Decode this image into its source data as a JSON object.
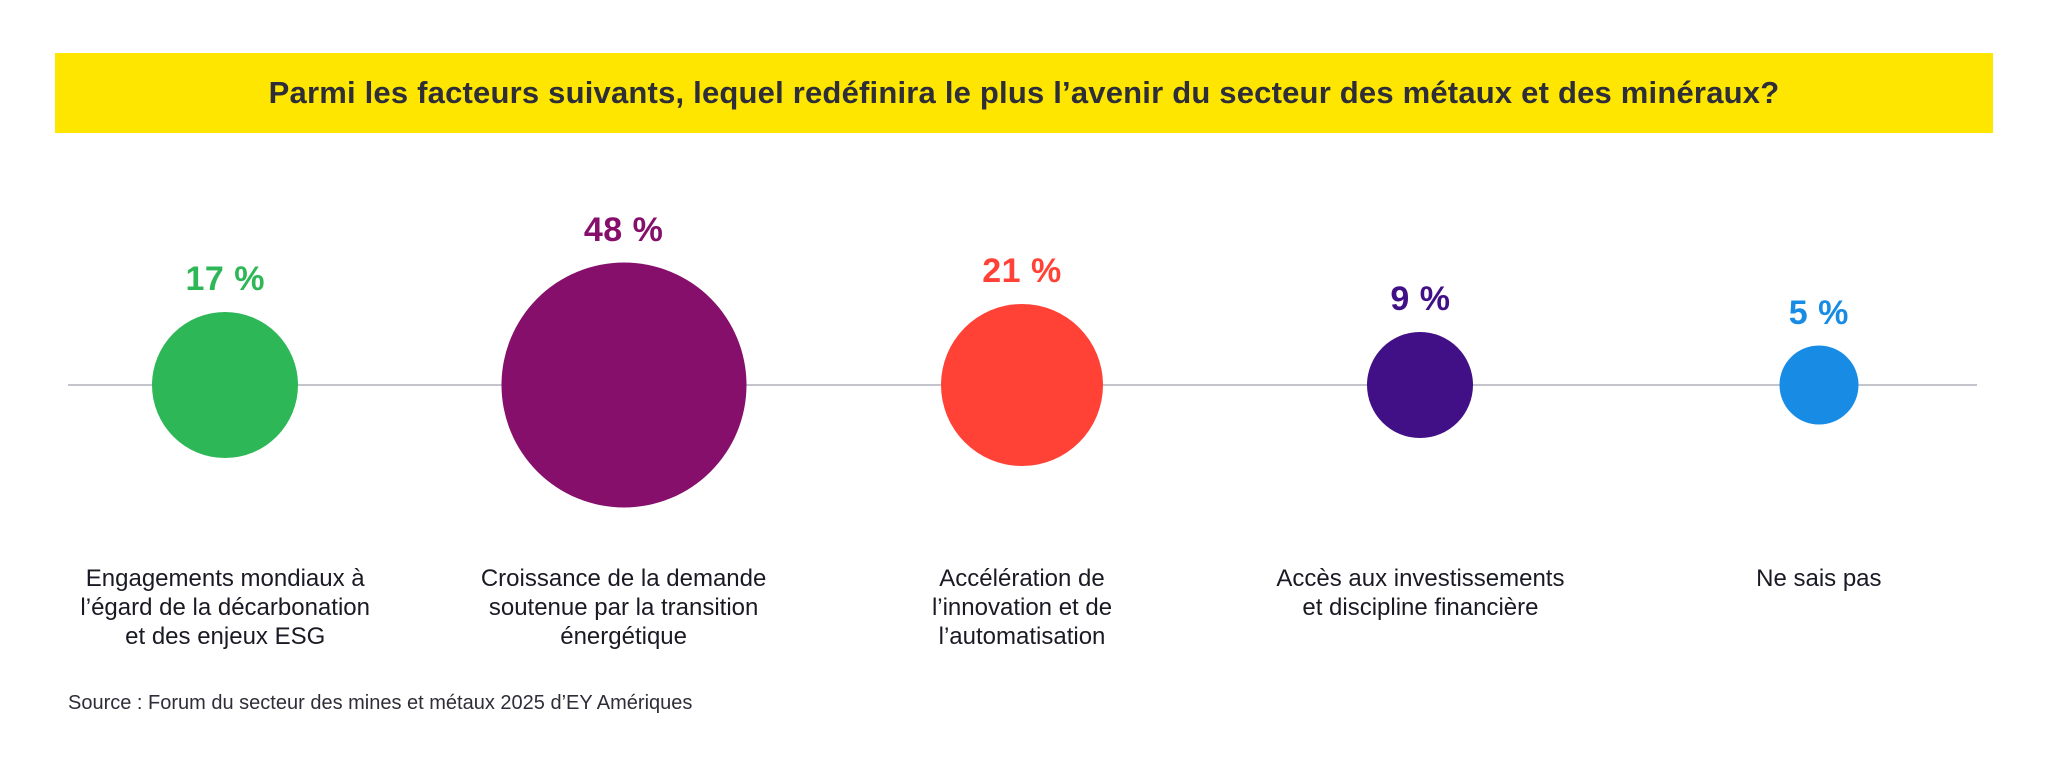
{
  "banner": {
    "title": "Parmi les facteurs suivants, lequel redéfinira le plus l’avenir du secteur des métaux et des minéraux?",
    "background": "#FFE600",
    "text_color": "#2E2E38"
  },
  "source": {
    "text": "Source : Forum du secteur des mines et métaux 2025 d’EY Amériques"
  },
  "chart_data": {
    "type": "bubble",
    "title": "Parmi les facteurs suivants, lequel redéfinira le plus l’avenir du secteur des métaux et des minéraux?",
    "unit": "%",
    "layout": "horizontal row of area-proportional circles centered on a gray baseline, value label above each circle, category label below",
    "baseline_color": "#C4C4CD",
    "items": [
      {
        "label": "Engagements mondiaux à l’égard de la décarbonation et des enjeux ESG",
        "label_lines": [
          "Engagements mondiaux à",
          "l’égard de la décarbonation",
          "et des enjeux ESG"
        ],
        "value": 17,
        "value_label": "17 %",
        "color": "#2DB757"
      },
      {
        "label": "Croissance de la demande soutenue par la transition énergétique",
        "label_lines": [
          "Croissance de la demande",
          "soutenue par la transition",
          "énergétique"
        ],
        "value": 48,
        "value_label": "48 %",
        "color": "#850F6B"
      },
      {
        "label": "Accélération de l’innovation et de l’automatisation",
        "label_lines": [
          "Accélération de",
          "l’innovation et de",
          "l’automatisation"
        ],
        "value": 21,
        "value_label": "21 %",
        "color": "#FF4136"
      },
      {
        "label": "Accès aux investissements et discipline financière",
        "label_lines": [
          "Accès aux investissements",
          "et discipline financière"
        ],
        "value": 9,
        "value_label": "9 %",
        "color": "#421086"
      },
      {
        "label": "Ne sais pas",
        "label_lines": [
          "Ne sais pas"
        ],
        "value": 5,
        "value_label": "5 %",
        "color": "#188CE5"
      }
    ]
  }
}
